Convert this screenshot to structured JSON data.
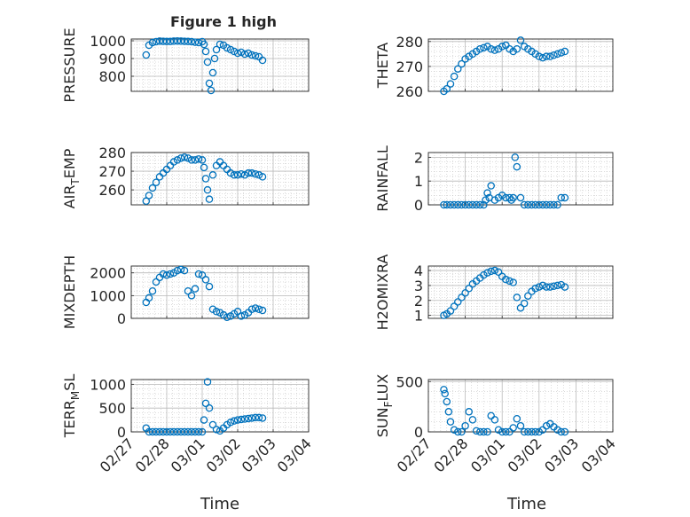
{
  "title": "Figure 1 high",
  "x_axis_label": "Time",
  "x_ticks": [
    "02/27",
    "02/28",
    "03/01",
    "03/02",
    "03/03",
    "03/04"
  ],
  "colors": {
    "marker": "#0072BD",
    "axes": "#262626",
    "grid": "#b9b9b9"
  },
  "chart_data": [
    {
      "type": "scatter",
      "ylabel": "PRESSURE",
      "ylim": [
        715,
        1010
      ],
      "yticks": [
        800,
        900,
        1000
      ],
      "x_days": [
        0.42,
        0.5,
        0.6,
        0.7,
        0.8,
        0.9,
        1.0,
        1.1,
        1.2,
        1.3,
        1.4,
        1.5,
        1.6,
        1.7,
        1.8,
        1.9,
        2.0,
        2.05,
        2.1,
        2.15,
        2.2,
        2.25,
        2.3,
        2.35,
        2.4,
        2.5,
        2.6,
        2.7,
        2.8,
        2.9,
        3.0,
        3.1,
        3.2,
        3.3,
        3.4,
        3.5,
        3.6,
        3.7
      ],
      "y": [
        920,
        975,
        990,
        995,
        998,
        997,
        996,
        996,
        998,
        999,
        998,
        997,
        996,
        995,
        992,
        990,
        995,
        980,
        940,
        880,
        760,
        720,
        820,
        900,
        950,
        980,
        975,
        960,
        950,
        940,
        930,
        935,
        925,
        930,
        920,
        915,
        910,
        890
      ]
    },
    {
      "type": "scatter",
      "ylabel": "THETA",
      "ylim": [
        260,
        281
      ],
      "yticks": [
        260,
        270,
        280
      ],
      "x_days": [
        0.42,
        0.5,
        0.6,
        0.7,
        0.8,
        0.9,
        1.0,
        1.1,
        1.2,
        1.3,
        1.4,
        1.5,
        1.6,
        1.7,
        1.8,
        1.9,
        2.0,
        2.1,
        2.2,
        2.3,
        2.4,
        2.5,
        2.6,
        2.7,
        2.8,
        2.9,
        3.0,
        3.1,
        3.2,
        3.3,
        3.4,
        3.5,
        3.6,
        3.7
      ],
      "y": [
        260,
        261,
        263,
        266,
        269,
        271,
        273,
        274,
        275,
        276,
        277,
        277.5,
        278,
        277,
        276.5,
        277,
        278,
        278.5,
        277,
        276,
        277,
        280.5,
        278,
        277,
        276,
        275,
        274,
        273.5,
        274,
        274,
        274.5,
        275,
        275.5,
        276
      ]
    },
    {
      "type": "scatter",
      "ylabel": "AIR_TEMP",
      "ylim": [
        252,
        280
      ],
      "yticks": [
        260,
        270,
        280
      ],
      "x_days": [
        0.42,
        0.5,
        0.6,
        0.7,
        0.8,
        0.9,
        1.0,
        1.1,
        1.2,
        1.3,
        1.4,
        1.5,
        1.6,
        1.7,
        1.8,
        1.9,
        2.0,
        2.05,
        2.1,
        2.15,
        2.2,
        2.3,
        2.4,
        2.5,
        2.6,
        2.7,
        2.8,
        2.9,
        3.0,
        3.1,
        3.2,
        3.3,
        3.4,
        3.5,
        3.6,
        3.7
      ],
      "y": [
        254,
        257,
        261,
        264,
        267,
        269,
        271,
        273,
        275,
        276,
        277,
        277.5,
        277,
        276,
        276,
        276.5,
        276,
        272,
        266,
        260,
        255,
        268,
        273,
        275,
        273,
        271,
        269,
        268,
        268,
        268.5,
        268,
        269,
        269,
        268.5,
        268,
        267
      ]
    },
    {
      "type": "scatter",
      "ylabel": "RAINFALL",
      "ylim": [
        0,
        2.2
      ],
      "yticks": [
        0,
        1,
        2
      ],
      "x_days": [
        0.42,
        0.5,
        0.6,
        0.7,
        0.8,
        0.9,
        1.0,
        1.1,
        1.2,
        1.3,
        1.4,
        1.5,
        1.55,
        1.6,
        1.65,
        1.7,
        1.8,
        1.9,
        2.0,
        2.1,
        2.2,
        2.25,
        2.3,
        2.35,
        2.4,
        2.5,
        2.6,
        2.7,
        2.8,
        2.9,
        3.0,
        3.1,
        3.2,
        3.3,
        3.4,
        3.5,
        3.6,
        3.7
      ],
      "y": [
        0,
        0,
        0,
        0,
        0,
        0,
        0,
        0,
        0,
        0,
        0,
        0,
        0.2,
        0.5,
        0.3,
        0.8,
        0.2,
        0.3,
        0.4,
        0.3,
        0.3,
        0.2,
        0.3,
        2.0,
        1.6,
        0.3,
        0,
        0,
        0,
        0,
        0,
        0,
        0,
        0,
        0,
        0,
        0.3,
        0.3
      ]
    },
    {
      "type": "scatter",
      "ylabel": "MIXDEPTH",
      "ylim": [
        0,
        2300
      ],
      "yticks": [
        0,
        1000,
        2000
      ],
      "x_days": [
        0.42,
        0.5,
        0.6,
        0.7,
        0.8,
        0.9,
        1.0,
        1.1,
        1.2,
        1.3,
        1.4,
        1.5,
        1.6,
        1.7,
        1.8,
        1.9,
        2.0,
        2.1,
        2.2,
        2.3,
        2.4,
        2.5,
        2.6,
        2.7,
        2.8,
        2.9,
        3.0,
        3.1,
        3.2,
        3.3,
        3.4,
        3.5,
        3.6,
        3.7
      ],
      "y": [
        700,
        900,
        1200,
        1600,
        1800,
        1950,
        1900,
        1950,
        2000,
        2100,
        2150,
        2100,
        1200,
        1000,
        1300,
        1950,
        1900,
        1700,
        1400,
        400,
        300,
        250,
        150,
        50,
        100,
        200,
        300,
        100,
        150,
        250,
        400,
        450,
        400,
        350
      ]
    },
    {
      "type": "scatter",
      "ylabel": "H2OMIXRA",
      "ylim": [
        0.8,
        4.3
      ],
      "yticks": [
        1,
        2,
        3,
        4
      ],
      "x_days": [
        0.42,
        0.5,
        0.6,
        0.7,
        0.8,
        0.9,
        1.0,
        1.1,
        1.2,
        1.3,
        1.4,
        1.5,
        1.6,
        1.7,
        1.8,
        1.9,
        2.0,
        2.1,
        2.2,
        2.3,
        2.4,
        2.5,
        2.6,
        2.7,
        2.8,
        2.9,
        3.0,
        3.1,
        3.2,
        3.3,
        3.4,
        3.5,
        3.6,
        3.7
      ],
      "y": [
        1.0,
        1.1,
        1.3,
        1.6,
        1.9,
        2.2,
        2.5,
        2.8,
        3.1,
        3.3,
        3.5,
        3.7,
        3.85,
        3.95,
        4.0,
        3.9,
        3.6,
        3.4,
        3.3,
        3.2,
        2.2,
        1.5,
        1.8,
        2.3,
        2.6,
        2.8,
        2.9,
        3.0,
        2.9,
        2.9,
        2.95,
        3.0,
        3.05,
        2.9
      ]
    },
    {
      "type": "scatter",
      "ylabel": "TERR_MSL",
      "ylim": [
        0,
        1100
      ],
      "yticks": [
        0,
        500,
        1000
      ],
      "x_days": [
        0.42,
        0.5,
        0.6,
        0.7,
        0.8,
        0.9,
        1.0,
        1.1,
        1.2,
        1.3,
        1.4,
        1.5,
        1.6,
        1.7,
        1.8,
        1.9,
        2.0,
        2.05,
        2.1,
        2.15,
        2.2,
        2.3,
        2.4,
        2.5,
        2.6,
        2.7,
        2.8,
        2.9,
        3.0,
        3.1,
        3.2,
        3.3,
        3.4,
        3.5,
        3.6,
        3.7
      ],
      "y": [
        80,
        0,
        0,
        0,
        0,
        0,
        0,
        0,
        0,
        0,
        0,
        0,
        0,
        0,
        0,
        0,
        0,
        250,
        600,
        1050,
        500,
        150,
        50,
        20,
        80,
        150,
        200,
        230,
        250,
        260,
        270,
        280,
        290,
        300,
        300,
        290
      ]
    },
    {
      "type": "scatter",
      "ylabel": "SUN_FLUX",
      "ylim": [
        0,
        520
      ],
      "yticks": [
        0,
        500
      ],
      "x_days": [
        0.42,
        0.45,
        0.5,
        0.55,
        0.6,
        0.7,
        0.8,
        0.9,
        1.0,
        1.1,
        1.2,
        1.3,
        1.4,
        1.5,
        1.6,
        1.7,
        1.8,
        1.9,
        2.0,
        2.1,
        2.2,
        2.3,
        2.4,
        2.5,
        2.6,
        2.7,
        2.8,
        2.9,
        3.0,
        3.1,
        3.2,
        3.3,
        3.4,
        3.5,
        3.6,
        3.7
      ],
      "y": [
        420,
        380,
        300,
        200,
        100,
        20,
        0,
        0,
        60,
        200,
        120,
        10,
        0,
        0,
        0,
        160,
        120,
        20,
        0,
        0,
        0,
        40,
        130,
        60,
        0,
        0,
        0,
        0,
        0,
        20,
        60,
        80,
        50,
        20,
        0,
        0
      ]
    }
  ]
}
